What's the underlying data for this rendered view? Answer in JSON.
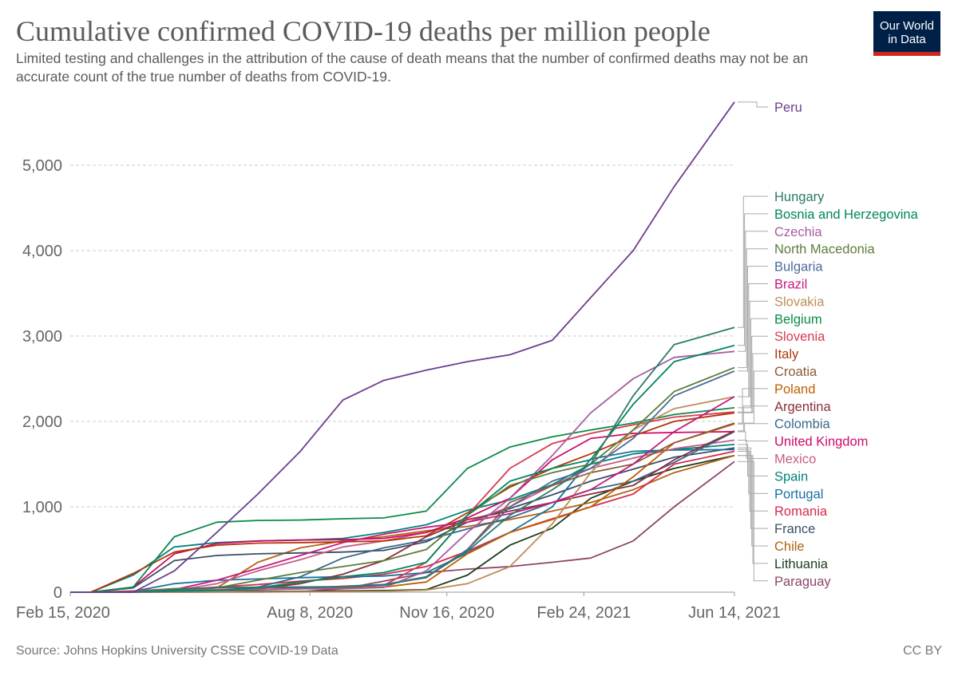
{
  "header": {
    "title": "Cumulative confirmed COVID-19 deaths per million people",
    "subtitle": "Limited testing and challenges in the attribution of the cause of death means that the number of confirmed deaths may not be an accurate count of the true number of deaths from COVID-19.",
    "logo_line1": "Our World",
    "logo_line2": "in Data"
  },
  "footer": {
    "source": "Source: Johns Hopkins University CSSE COVID-19 Data",
    "license": "CC BY"
  },
  "chart_data": {
    "type": "line",
    "title": "Cumulative confirmed COVID-19 deaths per million people",
    "xlim": [
      "2020-02-15",
      "2021-06-14"
    ],
    "ylim": [
      0,
      5740
    ],
    "grid": true,
    "legend": "right (line-end labels)",
    "x_ticks": [
      {
        "date": "2020-02-15",
        "label": "Feb 15, 2020"
      },
      {
        "date": "2020-08-08",
        "label": "Aug 8, 2020"
      },
      {
        "date": "2020-11-16",
        "label": "Nov 16, 2020"
      },
      {
        "date": "2021-02-24",
        "label": "Feb 24, 2021"
      },
      {
        "date": "2021-06-14",
        "label": "Jun 14, 2021"
      }
    ],
    "y_ticks": [
      {
        "value": 0,
        "label": "0"
      },
      {
        "value": 1000,
        "label": "1,000"
      },
      {
        "value": 2000,
        "label": "2,000"
      },
      {
        "value": 3000,
        "label": "3,000"
      },
      {
        "value": 4000,
        "label": "4,000"
      },
      {
        "value": 5000,
        "label": "5,000"
      }
    ],
    "x": [
      "2020-02-15",
      "2020-03-01",
      "2020-04-01",
      "2020-05-01",
      "2020-06-01",
      "2020-07-01",
      "2020-08-01",
      "2020-09-01",
      "2020-10-01",
      "2020-11-01",
      "2020-12-01",
      "2021-01-01",
      "2021-02-01",
      "2021-03-01",
      "2021-04-01",
      "2021-05-01",
      "2021-06-14"
    ],
    "series": [
      {
        "name": "Peru",
        "color": "#6d3e91",
        "values": [
          0,
          0,
          0,
          250,
          700,
          1150,
          1650,
          2250,
          2480,
          2600,
          2700,
          2780,
          2950,
          3450,
          4000,
          4750,
          5740
        ]
      },
      {
        "name": "Hungary",
        "color": "#2a7a6c",
        "values": [
          0,
          0,
          0,
          30,
          55,
          60,
          62,
          65,
          80,
          180,
          480,
          900,
          1200,
          1500,
          2300,
          2900,
          3100
        ]
      },
      {
        "name": "Bosnia and Herzegovina",
        "color": "#00875f",
        "values": [
          0,
          0,
          5,
          15,
          20,
          50,
          120,
          180,
          230,
          350,
          900,
          1300,
          1450,
          1550,
          2200,
          2700,
          2890
        ]
      },
      {
        "name": "Czechia",
        "color": "#a75c9e",
        "values": [
          0,
          0,
          0,
          20,
          30,
          35,
          38,
          40,
          55,
          250,
          700,
          1100,
          1600,
          2100,
          2500,
          2750,
          2820
        ]
      },
      {
        "name": "North Macedonia",
        "color": "#5b7c3a",
        "values": [
          0,
          0,
          5,
          40,
          50,
          140,
          230,
          300,
          370,
          500,
          900,
          1250,
          1400,
          1500,
          1900,
          2350,
          2630
        ]
      },
      {
        "name": "Bulgaria",
        "color": "#4c6a9c",
        "values": [
          0,
          0,
          0,
          10,
          20,
          30,
          45,
          70,
          90,
          170,
          500,
          1000,
          1300,
          1450,
          1800,
          2300,
          2590
        ]
      },
      {
        "name": "Brazil",
        "color": "#c51b7d",
        "values": [
          0,
          0,
          10,
          30,
          140,
          280,
          430,
          580,
          680,
          760,
          820,
          920,
          1050,
          1200,
          1500,
          1880,
          2290
        ]
      },
      {
        "name": "Slovakia",
        "color": "#bc8e5a",
        "values": [
          0,
          0,
          0,
          0,
          5,
          5,
          5,
          6,
          10,
          25,
          100,
          300,
          800,
          1400,
          1900,
          2150,
          2290
        ]
      },
      {
        "name": "Belgium",
        "color": "#0a8a4b",
        "values": [
          0,
          0,
          60,
          650,
          820,
          840,
          845,
          860,
          870,
          950,
          1450,
          1700,
          1820,
          1900,
          1980,
          2080,
          2160
        ]
      },
      {
        "name": "Slovenia",
        "color": "#d73c50",
        "values": [
          0,
          0,
          15,
          40,
          50,
          55,
          55,
          60,
          80,
          350,
          900,
          1450,
          1740,
          1860,
          1960,
          2050,
          2110
        ]
      },
      {
        "name": "Italy",
        "color": "#b13507",
        "values": [
          0,
          0,
          220,
          470,
          550,
          575,
          580,
          590,
          600,
          660,
          930,
          1230,
          1450,
          1620,
          1830,
          2000,
          2100
        ]
      },
      {
        "name": "Croatia",
        "color": "#8c5a36",
        "values": [
          0,
          0,
          0,
          10,
          25,
          30,
          40,
          60,
          90,
          180,
          500,
          1050,
          1250,
          1400,
          1500,
          1750,
          1980
        ]
      },
      {
        "name": "Poland",
        "color": "#c15f00",
        "values": [
          0,
          0,
          0,
          10,
          25,
          30,
          40,
          50,
          60,
          120,
          450,
          700,
          850,
          1000,
          1350,
          1750,
          1970
        ]
      },
      {
        "name": "Argentina",
        "color": "#883039",
        "values": [
          0,
          0,
          0,
          5,
          15,
          40,
          100,
          210,
          370,
          650,
          850,
          950,
          1050,
          1150,
          1250,
          1550,
          1890
        ]
      },
      {
        "name": "Colombia",
        "color": "#38678c",
        "values": [
          0,
          0,
          0,
          10,
          20,
          60,
          180,
          400,
          520,
          610,
          740,
          870,
          1050,
          1200,
          1300,
          1520,
          1880
        ]
      },
      {
        "name": "United Kingdom",
        "color": "#cf0a66",
        "values": [
          0,
          0,
          60,
          450,
          570,
          600,
          610,
          615,
          630,
          700,
          870,
          1100,
          1550,
          1800,
          1860,
          1870,
          1880
        ]
      },
      {
        "name": "Mexico",
        "color": "#c75b85",
        "values": [
          0,
          0,
          0,
          20,
          100,
          250,
          380,
          530,
          600,
          700,
          820,
          1000,
          1250,
          1450,
          1570,
          1680,
          1780
        ]
      },
      {
        "name": "Spain",
        "color": "#00847e",
        "values": [
          0,
          0,
          200,
          530,
          580,
          600,
          610,
          630,
          700,
          790,
          960,
          1080,
          1260,
          1500,
          1620,
          1670,
          1730
        ]
      },
      {
        "name": "Portugal",
        "color": "#18729e",
        "values": [
          0,
          0,
          10,
          100,
          140,
          155,
          170,
          180,
          190,
          230,
          460,
          700,
          1000,
          1560,
          1650,
          1665,
          1670
        ]
      },
      {
        "name": "Romania",
        "color": "#d42b4e",
        "values": [
          0,
          0,
          5,
          30,
          60,
          90,
          130,
          160,
          210,
          300,
          480,
          700,
          860,
          1000,
          1150,
          1500,
          1650
        ]
      },
      {
        "name": "France",
        "color": "#3c4e66",
        "values": [
          0,
          0,
          50,
          370,
          430,
          450,
          460,
          470,
          490,
          590,
          820,
          980,
          1140,
          1300,
          1440,
          1580,
          1690
        ]
      },
      {
        "name": "Chile",
        "color": "#b16214",
        "values": [
          0,
          0,
          0,
          12,
          50,
          350,
          520,
          600,
          650,
          720,
          770,
          850,
          950,
          1050,
          1200,
          1400,
          1600
        ]
      },
      {
        "name": "Lithuania",
        "color": "#1a3c1a",
        "values": [
          0,
          0,
          0,
          5,
          10,
          10,
          10,
          15,
          20,
          30,
          200,
          550,
          750,
          1100,
          1300,
          1450,
          1600
        ]
      },
      {
        "name": "Paraguay",
        "color": "#8c4569",
        "values": [
          0,
          0,
          0,
          0,
          1,
          2,
          5,
          40,
          130,
          230,
          270,
          300,
          350,
          400,
          600,
          1000,
          1530
        ]
      }
    ]
  }
}
